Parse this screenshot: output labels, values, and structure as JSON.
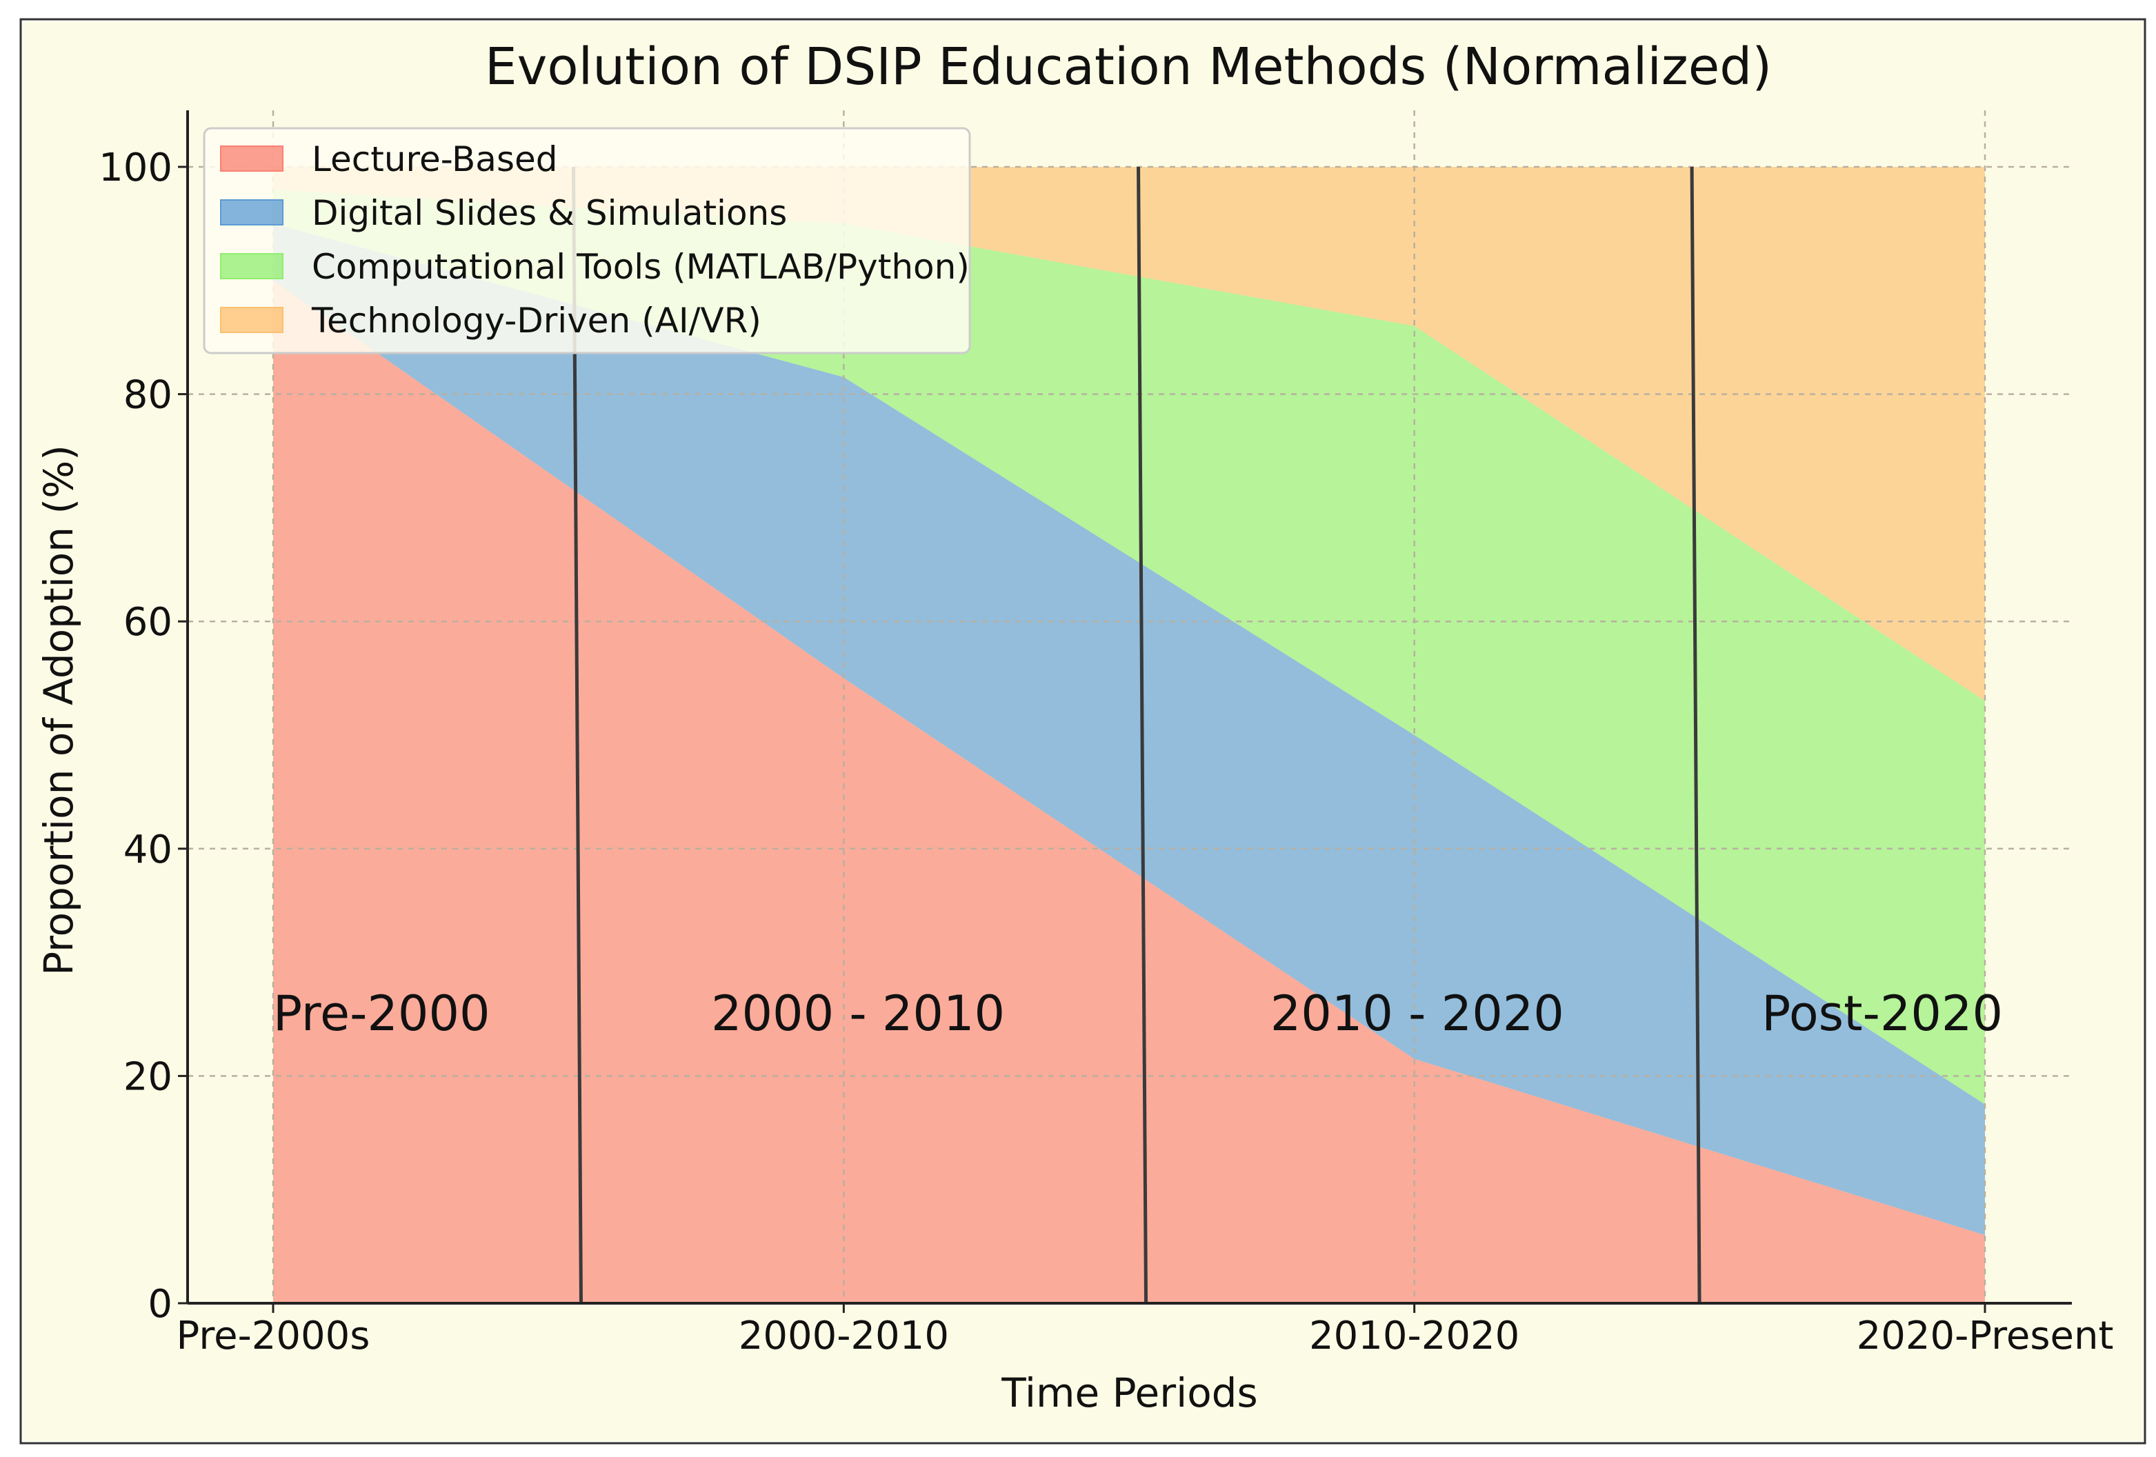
{
  "chart_data": {
    "type": "area",
    "stacked": true,
    "title": "Evolution of DSIP Education Methods (Normalized)",
    "xlabel": "Time Periods",
    "ylabel": "Proportion of Adoption (%)",
    "categories": [
      "Pre-2000s",
      "2000-2010",
      "2010-2020",
      "2020-Present"
    ],
    "ylim": [
      0,
      105
    ],
    "yticks": [
      0,
      20,
      40,
      60,
      80,
      100
    ],
    "grid": true,
    "legend_position": "top-left",
    "series": [
      {
        "name": "Lecture-Based",
        "values": [
          90,
          55,
          21.5,
          6
        ],
        "color": "#fa8072"
      },
      {
        "name": "Digital Slides & Simulations",
        "values": [
          5,
          26.5,
          28.5,
          11.5
        ],
        "color": "#5b9bd5"
      },
      {
        "name": "Computational Tools (MATLAB/Python)",
        "values": [
          3,
          13.5,
          36,
          35.5
        ],
        "color": "#90ee70"
      },
      {
        "name": "Technology-Driven (AI/VR)",
        "values": [
          2,
          5,
          14,
          47
        ],
        "color": "#fdbf6f"
      }
    ],
    "era_labels": [
      "Pre-2000",
      "2000 - 2010",
      "2010 - 2020",
      "Post-2020"
    ],
    "era_boundaries": [
      0.53,
      1.52,
      2.49
    ]
  }
}
